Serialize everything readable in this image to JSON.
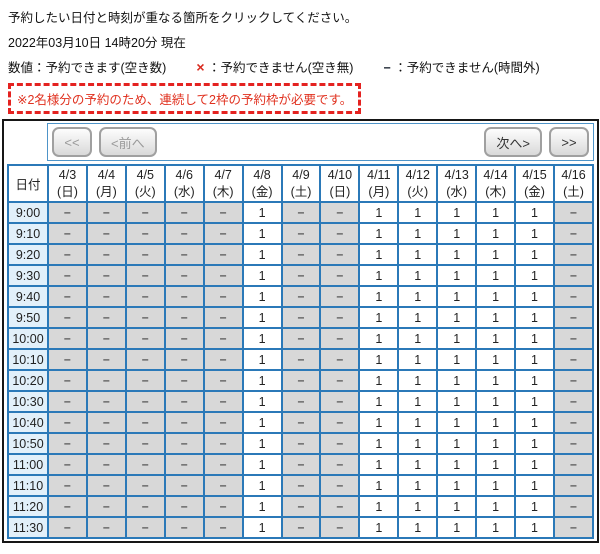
{
  "colors": {
    "table_border_blue": "#2b79b8",
    "nav_border_blue": "#4e94c8",
    "frame_border_black": "#161616",
    "time_column_bg": "#e2f0fa",
    "unavailable_cell_bg": "#d8d8d8",
    "available_cell_bg": "#ffffff",
    "date_sunday_red": "#d8402c",
    "date_saturday_blue": "#2149c4",
    "notice_red": "#e0301e",
    "legend_x_red": "#d92b1f",
    "button_bg_gray": "#d9d9d9"
  },
  "header": {
    "instruction": "予約したい日付と時刻が重なる箇所をクリックしてください。",
    "current_datetime": "2022年03月10日 14時20分 現在",
    "notice": "※2名様分の予約のため、連続して2枠の予約枠が必要です。"
  },
  "legend": {
    "available": {
      "symbol": "数値",
      "label": "：予約できます(空き数)"
    },
    "full": {
      "symbol": "×",
      "label": "：予約できません(空き無)"
    },
    "outside": {
      "symbol": "−",
      "label": "：予約できません(時間外)"
    }
  },
  "nav": {
    "first": "<<",
    "prev": "<前へ",
    "next": "次へ>",
    "last": ">>"
  },
  "table": {
    "corner": "日付",
    "dates": [
      {
        "date": "4/3",
        "dow": "(日)",
        "color": "red"
      },
      {
        "date": "4/4",
        "dow": "(月)",
        "color": "black"
      },
      {
        "date": "4/5",
        "dow": "(火)",
        "color": "black"
      },
      {
        "date": "4/6",
        "dow": "(水)",
        "color": "black"
      },
      {
        "date": "4/7",
        "dow": "(木)",
        "color": "black"
      },
      {
        "date": "4/8",
        "dow": "(金)",
        "color": "black"
      },
      {
        "date": "4/9",
        "dow": "(土)",
        "color": "blue"
      },
      {
        "date": "4/10",
        "dow": "(日)",
        "color": "red"
      },
      {
        "date": "4/11",
        "dow": "(月)",
        "color": "black"
      },
      {
        "date": "4/12",
        "dow": "(火)",
        "color": "black"
      },
      {
        "date": "4/13",
        "dow": "(水)",
        "color": "black"
      },
      {
        "date": "4/14",
        "dow": "(木)",
        "color": "black"
      },
      {
        "date": "4/15",
        "dow": "(金)",
        "color": "black"
      },
      {
        "date": "4/16",
        "dow": "(土)",
        "color": "blue"
      }
    ],
    "rows": [
      {
        "time": "9:00",
        "cells": [
          "−",
          "−",
          "−",
          "−",
          "−",
          "1",
          "−",
          "−",
          "1",
          "1",
          "1",
          "1",
          "1",
          "−"
        ]
      },
      {
        "time": "9:10",
        "cells": [
          "−",
          "−",
          "−",
          "−",
          "−",
          "1",
          "−",
          "−",
          "1",
          "1",
          "1",
          "1",
          "1",
          "−"
        ]
      },
      {
        "time": "9:20",
        "cells": [
          "−",
          "−",
          "−",
          "−",
          "−",
          "1",
          "−",
          "−",
          "1",
          "1",
          "1",
          "1",
          "1",
          "−"
        ]
      },
      {
        "time": "9:30",
        "cells": [
          "−",
          "−",
          "−",
          "−",
          "−",
          "1",
          "−",
          "−",
          "1",
          "1",
          "1",
          "1",
          "1",
          "−"
        ]
      },
      {
        "time": "9:40",
        "cells": [
          "−",
          "−",
          "−",
          "−",
          "−",
          "1",
          "−",
          "−",
          "1",
          "1",
          "1",
          "1",
          "1",
          "−"
        ]
      },
      {
        "time": "9:50",
        "cells": [
          "−",
          "−",
          "−",
          "−",
          "−",
          "1",
          "−",
          "−",
          "1",
          "1",
          "1",
          "1",
          "1",
          "−"
        ]
      },
      {
        "time": "10:00",
        "cells": [
          "−",
          "−",
          "−",
          "−",
          "−",
          "1",
          "−",
          "−",
          "1",
          "1",
          "1",
          "1",
          "1",
          "−"
        ]
      },
      {
        "time": "10:10",
        "cells": [
          "−",
          "−",
          "−",
          "−",
          "−",
          "1",
          "−",
          "−",
          "1",
          "1",
          "1",
          "1",
          "1",
          "−"
        ]
      },
      {
        "time": "10:20",
        "cells": [
          "−",
          "−",
          "−",
          "−",
          "−",
          "1",
          "−",
          "−",
          "1",
          "1",
          "1",
          "1",
          "1",
          "−"
        ]
      },
      {
        "time": "10:30",
        "cells": [
          "−",
          "−",
          "−",
          "−",
          "−",
          "1",
          "−",
          "−",
          "1",
          "1",
          "1",
          "1",
          "1",
          "−"
        ]
      },
      {
        "time": "10:40",
        "cells": [
          "−",
          "−",
          "−",
          "−",
          "−",
          "1",
          "−",
          "−",
          "1",
          "1",
          "1",
          "1",
          "1",
          "−"
        ]
      },
      {
        "time": "10:50",
        "cells": [
          "−",
          "−",
          "−",
          "−",
          "−",
          "1",
          "−",
          "−",
          "1",
          "1",
          "1",
          "1",
          "1",
          "−"
        ]
      },
      {
        "time": "11:00",
        "cells": [
          "−",
          "−",
          "−",
          "−",
          "−",
          "1",
          "−",
          "−",
          "1",
          "1",
          "1",
          "1",
          "1",
          "−"
        ]
      },
      {
        "time": "11:10",
        "cells": [
          "−",
          "−",
          "−",
          "−",
          "−",
          "1",
          "−",
          "−",
          "1",
          "1",
          "1",
          "1",
          "1",
          "−"
        ]
      },
      {
        "time": "11:20",
        "cells": [
          "−",
          "−",
          "−",
          "−",
          "−",
          "1",
          "−",
          "−",
          "1",
          "1",
          "1",
          "1",
          "1",
          "−"
        ]
      },
      {
        "time": "11:30",
        "cells": [
          "−",
          "−",
          "−",
          "−",
          "−",
          "1",
          "−",
          "−",
          "1",
          "1",
          "1",
          "1",
          "1",
          "−"
        ]
      }
    ]
  }
}
